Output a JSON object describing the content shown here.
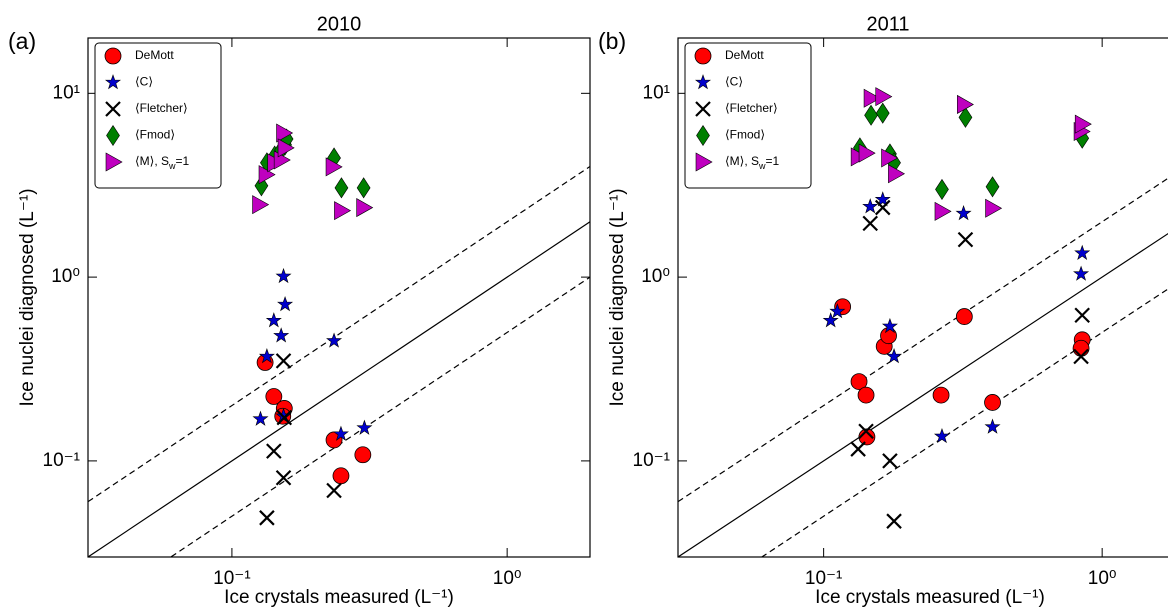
{
  "chart_data": [
    {
      "type": "scatter",
      "title": "2010",
      "panel_label": "(a)",
      "xlabel": "Ice crystals measured (L⁻¹)",
      "ylabel": "Ice nuclei diagnosed (L⁻¹)",
      "log_scale": true,
      "xlim": [
        0.03,
        2
      ],
      "ylim": [
        0.03,
        20
      ],
      "xticks": [
        {
          "value": 0.1,
          "label": "10⁻¹"
        },
        {
          "value": 1,
          "label": "10⁰"
        }
      ],
      "yticks": [
        {
          "value": 0.1,
          "label": "10⁻¹"
        },
        {
          "value": 1,
          "label": "10⁰"
        },
        {
          "value": 10,
          "label": "10¹"
        }
      ],
      "legend": "upper left",
      "reference_lines": [
        {
          "factor": 1,
          "style": "solid"
        },
        {
          "factor": 2,
          "style": "dashed"
        },
        {
          "factor": 0.5,
          "style": "dashed"
        }
      ],
      "series": [
        {
          "name": "DeMott",
          "color": "#ff0000",
          "marker": "circle",
          "x": [
            0.132,
            0.142,
            0.155,
            0.153,
            0.235,
            0.249,
            0.299
          ],
          "values": [
            0.343,
            0.224,
            0.193,
            0.175,
            0.13,
            0.083,
            0.108
          ]
        },
        {
          "name": "⟨C⟩",
          "color": "#0000cc",
          "marker": "star",
          "x": [
            0.154,
            0.156,
            0.142,
            0.151,
            0.134,
            0.235,
            0.127,
            0.249,
            0.303,
            0.154
          ],
          "values": [
            1.01,
            0.71,
            0.58,
            0.48,
            0.37,
            0.45,
            0.169,
            0.14,
            0.151,
            0.175
          ]
        },
        {
          "name": "⟨Fletcher⟩",
          "color": "#000000",
          "marker": "x",
          "x": [
            0.154,
            0.142,
            0.154,
            0.134,
            0.235,
            0.155
          ],
          "values": [
            0.35,
            0.113,
            0.081,
            0.049,
            0.069,
            0.172
          ]
        },
        {
          "name": "⟨Fmod⟩",
          "color": "#007f00",
          "marker": "diamond",
          "x": [
            0.128,
            0.134,
            0.143,
            0.151,
            0.156,
            0.158,
            0.235,
            0.25,
            0.301
          ],
          "values": [
            3.14,
            4.19,
            4.56,
            4.92,
            5.24,
            5.64,
            4.45,
            3.06,
            3.06
          ]
        },
        {
          "name": "⟨M⟩, S_w=1",
          "color": "#bf00bf",
          "marker": "triangle-right",
          "x": [
            0.126,
            0.133,
            0.143,
            0.151,
            0.154,
            0.156,
            0.233,
            0.25,
            0.301
          ],
          "values": [
            2.48,
            3.61,
            4.19,
            4.34,
            6.08,
            5.05,
            3.98,
            2.3,
            2.39
          ]
        }
      ]
    },
    {
      "type": "scatter",
      "title": "2011",
      "panel_label": "(b)",
      "xlabel": "Ice crystals measured (L⁻¹)",
      "ylabel": "Ice nuclei diagnosed (L⁻¹)",
      "log_scale": true,
      "xlim": [
        0.03,
        2
      ],
      "ylim": [
        0.03,
        20
      ],
      "xticks": [
        {
          "value": 0.1,
          "label": "10⁻¹"
        },
        {
          "value": 1,
          "label": "10⁰"
        }
      ],
      "yticks": [
        {
          "value": 0.1,
          "label": "10⁻¹"
        },
        {
          "value": 1,
          "label": "10⁰"
        },
        {
          "value": 10,
          "label": "10¹"
        }
      ],
      "legend": "upper left",
      "reference_lines": [
        {
          "factor": 1,
          "style": "solid"
        },
        {
          "factor": 2,
          "style": "dashed"
        },
        {
          "factor": 0.5,
          "style": "dashed"
        }
      ],
      "series": [
        {
          "name": "DeMott",
          "color": "#ff0000",
          "marker": "circle",
          "x": [
            0.134,
            0.142,
            0.117,
            0.165,
            0.171,
            0.32,
            0.264,
            0.404,
            0.143,
            0.848,
            0.84
          ],
          "values": [
            0.27,
            0.228,
            0.69,
            0.42,
            0.48,
            0.61,
            0.228,
            0.208,
            0.135,
            0.456,
            0.41
          ]
        },
        {
          "name": "⟨C⟩",
          "color": "#0000cc",
          "marker": "star",
          "x": [
            0.163,
            0.147,
            0.318,
            0.106,
            0.112,
            0.173,
            0.179,
            0.848,
            0.84,
            0.266,
            0.404
          ],
          "values": [
            2.64,
            2.42,
            2.22,
            0.58,
            0.65,
            0.54,
            0.37,
            1.35,
            1.04,
            0.136,
            0.153
          ]
        },
        {
          "name": "⟨Fletcher⟩",
          "color": "#000000",
          "marker": "x",
          "x": [
            0.147,
            0.163,
            0.323,
            0.848,
            0.84,
            0.142,
            0.133,
            0.173,
            0.179
          ],
          "values": [
            1.96,
            2.39,
            1.6,
            0.62,
            0.37,
            0.145,
            0.116,
            0.1,
            0.047
          ]
        },
        {
          "name": "⟨Fmod⟩",
          "color": "#007f00",
          "marker": "diamond",
          "x": [
            0.135,
            0.148,
            0.163,
            0.173,
            0.179,
            0.266,
            0.323,
            0.404,
            0.848
          ],
          "values": [
            5.05,
            7.6,
            7.8,
            4.68,
            4.19,
            3.0,
            7.4,
            3.1,
            5.7
          ]
        },
        {
          "name": "⟨M⟩, S_w=1",
          "color": "#bf00bf",
          "marker": "triangle-right",
          "x": [
            0.133,
            0.142,
            0.148,
            0.163,
            0.171,
            0.181,
            0.266,
            0.32,
            0.404,
            0.84,
            0.848
          ],
          "values": [
            4.51,
            4.73,
            9.4,
            9.6,
            4.45,
            3.65,
            2.28,
            8.7,
            2.37,
            6.2,
            6.8
          ]
        }
      ]
    }
  ]
}
